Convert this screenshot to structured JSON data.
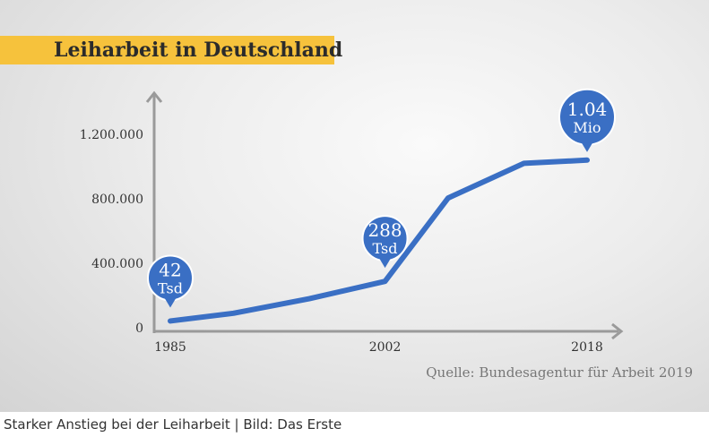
{
  "chart_data": {
    "type": "line",
    "title": "Leiharbeit in Deutschland",
    "xlabel": "",
    "ylabel": "",
    "x_ticks": [
      "1985",
      "2002",
      "2018"
    ],
    "y_ticks": [
      "0",
      "400.000",
      "800.000",
      "1.200.000"
    ],
    "y_tick_values": [
      0,
      400000,
      800000,
      1200000
    ],
    "xlim": [
      1985,
      2018
    ],
    "ylim": [
      0,
      1400000
    ],
    "grid": false,
    "line_color": "#3a6fc4",
    "x": [
      1985,
      1990,
      1996,
      2002,
      2007,
      2013,
      2018
    ],
    "values": [
      42000,
      90000,
      180000,
      288000,
      805000,
      1020000,
      1040000
    ],
    "annotations": [
      {
        "x": 1985,
        "value": 42000,
        "line1": "42",
        "line2": "Tsd"
      },
      {
        "x": 2002,
        "value": 288000,
        "line1": "288",
        "line2": "Tsd"
      },
      {
        "x": 2018,
        "value": 1040000,
        "line1": "1.04",
        "line2": "Mio"
      }
    ],
    "source": "Quelle: Bundesagentur für Arbeit 2019"
  },
  "colors": {
    "title_band": "#f6c23c",
    "bubble": "#3a6fc4",
    "axis": "#9a9a9a"
  },
  "caption": "Starker Anstieg bei der Leiharbeit | Bild: Das Erste"
}
